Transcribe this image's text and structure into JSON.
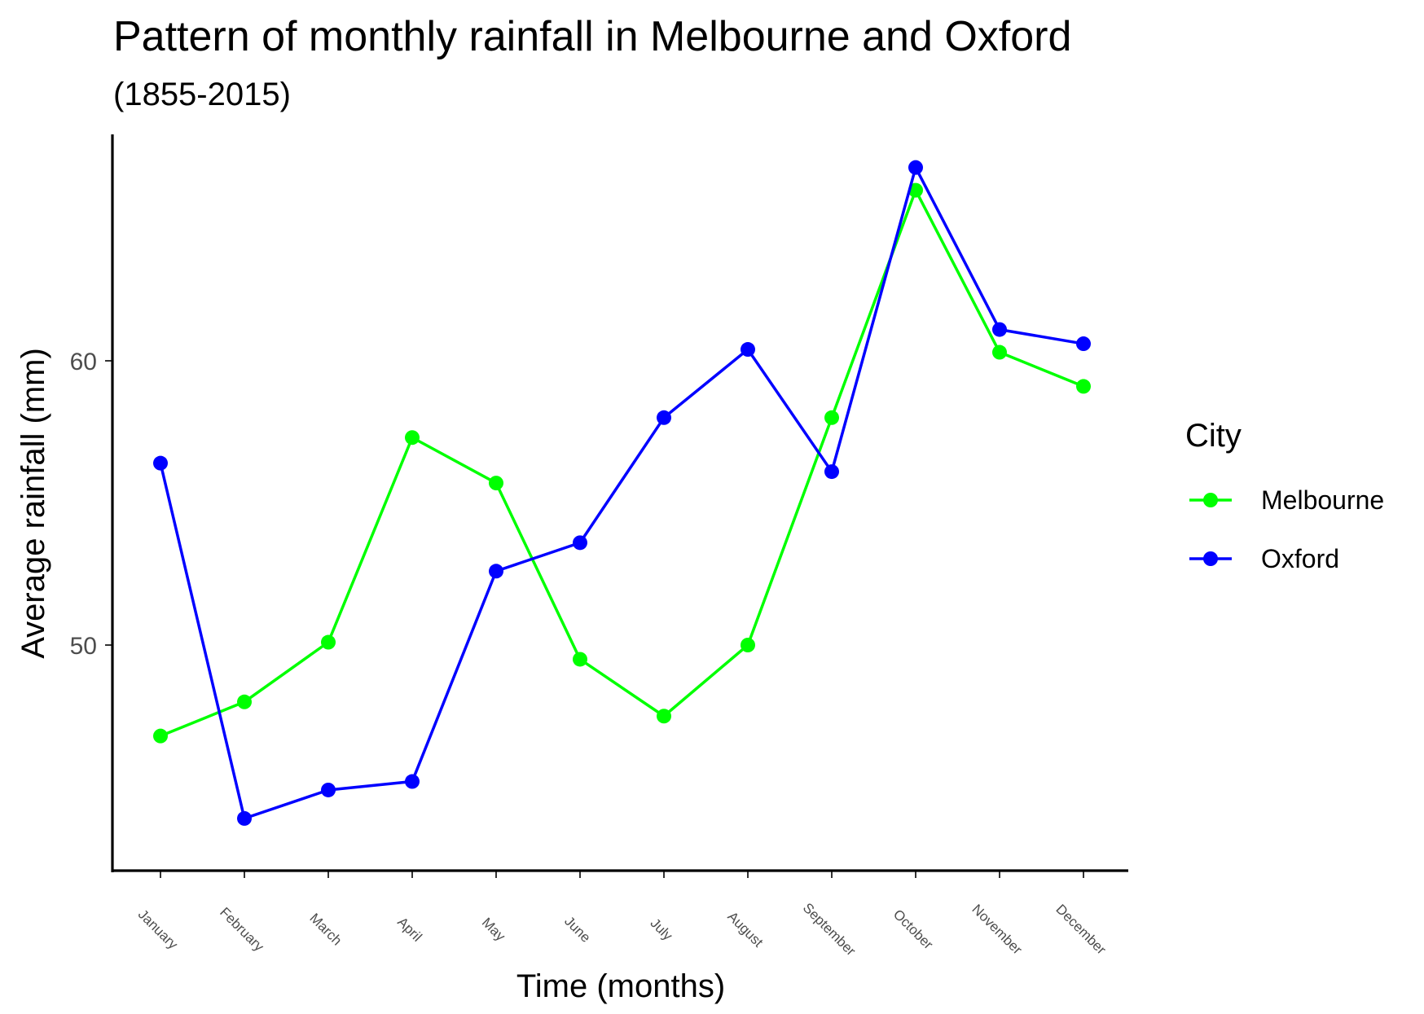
{
  "chart_data": {
    "type": "line",
    "title": "Pattern of monthly rainfall in Melbourne and Oxford",
    "subtitle": "(1855-2015)",
    "xlabel": "Time (months)",
    "ylabel": "Average rainfall (mm)",
    "categories": [
      "January",
      "February",
      "March",
      "April",
      "May",
      "June",
      "July",
      "August",
      "September",
      "October",
      "November",
      "December"
    ],
    "yticks": [
      50,
      60
    ],
    "ylim": [
      42.0,
      68.0
    ],
    "grid": false,
    "legend": {
      "title": "City",
      "position": "right"
    },
    "series": [
      {
        "name": "Melbourne",
        "color": "#00ff00",
        "values": [
          46.8,
          48.0,
          50.1,
          57.3,
          55.7,
          49.5,
          47.5,
          50.0,
          58.0,
          66.0,
          60.3,
          59.1
        ]
      },
      {
        "name": "Oxford",
        "color": "#0000ff",
        "values": [
          56.4,
          43.9,
          44.9,
          45.2,
          52.6,
          53.6,
          58.0,
          60.4,
          56.1,
          66.8,
          61.1,
          60.6
        ]
      }
    ]
  }
}
